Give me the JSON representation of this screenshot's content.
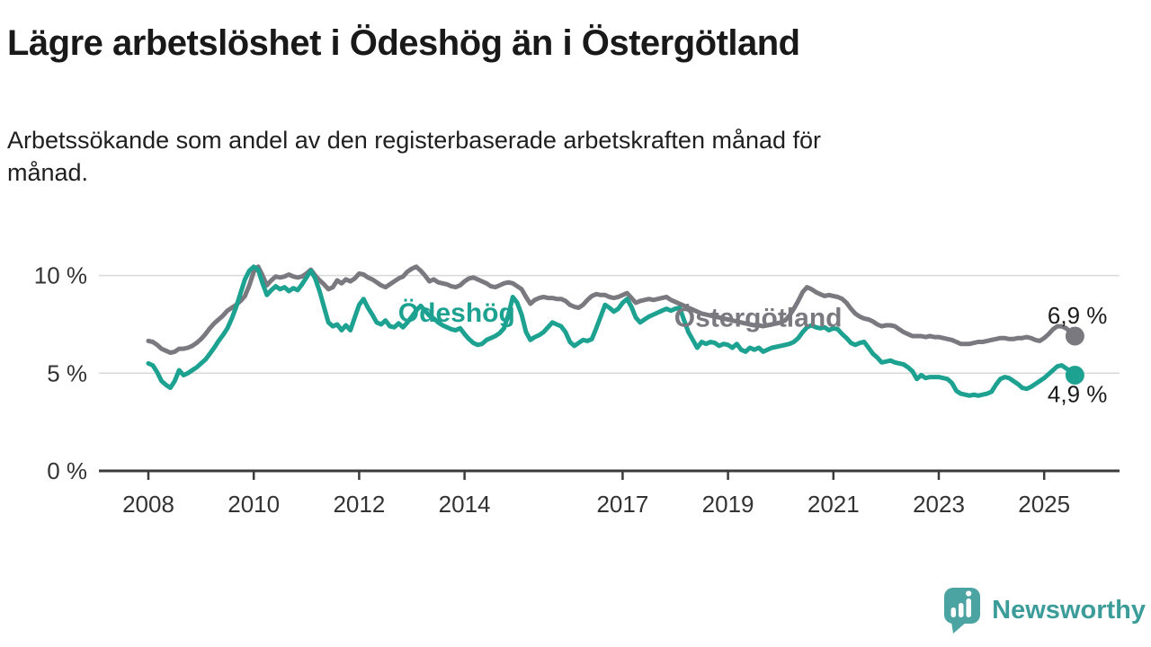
{
  "title": "Lägre arbetslöshet i Ödeshög än i Östergötland",
  "subtitle_lines": [
    "Arbetssökande som andel av den registerbaserade arbetskraften månad för",
    "månad."
  ],
  "branding": {
    "logo_text": "Newsworthy",
    "logo_color": "#4ba4a1",
    "logo_icon": "speech-bubble-bar-chart"
  },
  "colors": {
    "background": "#ffffff",
    "title_text": "#191919",
    "axis_text": "#333333",
    "axis_line": "#3b3b3b",
    "grid_line": "#d9d9d9",
    "odeshog_teal": "#1da190",
    "ostergotland_gray": "#7a797f"
  },
  "chart_data": {
    "type": "line",
    "title": "Lägre arbetslöshet i Ödeshög än i Östergötland",
    "xlabel": "",
    "ylabel": "Arbetssökande som andel av den registerbaserade arbetskraften",
    "x_unit": "year-month",
    "x_start": 2008.0,
    "x_step": 0.0833333,
    "xlim": [
      2007.06,
      2026.43
    ],
    "ylim": [
      0,
      11.7
    ],
    "grid_values": [
      5,
      10
    ],
    "x_ticks": [
      2008,
      2010,
      2012,
      2014,
      2017,
      2019,
      2021,
      2023,
      2025
    ],
    "y_ticks": [
      {
        "value": 0,
        "label": "0 %"
      },
      {
        "value": 5,
        "label": "5 %"
      },
      {
        "value": 10,
        "label": "10 %"
      }
    ],
    "legend_position": "inline-labels-on-lines",
    "series": [
      {
        "name": "Ödeshög",
        "slug": "odeshog",
        "color": "#1da190",
        "end_label": "4,9 %",
        "end_label_side": "below",
        "inline_label": {
          "x": 2012.74,
          "y": 8.1
        },
        "values": [
          5.5,
          5.4,
          5.05,
          4.6,
          4.4,
          4.25,
          4.6,
          5.15,
          4.9,
          5.0,
          5.15,
          5.3,
          5.5,
          5.7,
          6.0,
          6.3,
          6.65,
          6.95,
          7.3,
          7.8,
          8.4,
          9.1,
          9.8,
          10.25,
          10.45,
          10.3,
          9.6,
          9.0,
          9.25,
          9.45,
          9.3,
          9.4,
          9.2,
          9.35,
          9.25,
          9.55,
          9.9,
          10.25,
          9.85,
          9.2,
          8.4,
          7.6,
          7.4,
          7.5,
          7.2,
          7.45,
          7.2,
          7.85,
          8.5,
          8.8,
          8.35,
          8.0,
          7.6,
          7.5,
          7.7,
          7.4,
          7.35,
          7.55,
          7.35,
          7.6,
          7.9,
          8.2,
          8.45,
          8.2,
          7.95,
          7.8,
          7.6,
          7.45,
          7.35,
          7.25,
          7.2,
          7.3,
          7.0,
          6.75,
          6.55,
          6.45,
          6.5,
          6.7,
          6.8,
          6.9,
          7.05,
          7.3,
          8.0,
          8.9,
          8.6,
          8.0,
          7.1,
          6.7,
          6.85,
          6.95,
          7.1,
          7.35,
          7.6,
          7.5,
          7.4,
          7.1,
          6.6,
          6.4,
          6.55,
          6.7,
          6.65,
          6.75,
          7.3,
          7.9,
          8.5,
          8.35,
          8.15,
          8.3,
          8.6,
          8.8,
          8.4,
          7.85,
          7.6,
          7.75,
          7.9,
          8.0,
          8.1,
          8.2,
          8.3,
          8.2,
          8.3,
          8.35,
          7.7,
          7.1,
          6.7,
          6.3,
          6.6,
          6.5,
          6.6,
          6.55,
          6.4,
          6.5,
          6.45,
          6.3,
          6.5,
          6.2,
          6.1,
          6.3,
          6.2,
          6.3,
          6.1,
          6.2,
          6.3,
          6.35,
          6.4,
          6.45,
          6.5,
          6.6,
          6.8,
          7.1,
          7.35,
          7.45,
          7.35,
          7.3,
          7.35,
          7.2,
          7.3,
          7.25,
          7.0,
          6.8,
          6.55,
          6.45,
          6.55,
          6.6,
          6.3,
          6.0,
          5.8,
          5.55,
          5.6,
          5.65,
          5.55,
          5.5,
          5.45,
          5.3,
          5.1,
          4.7,
          4.9,
          4.75,
          4.8,
          4.8,
          4.8,
          4.75,
          4.7,
          4.5,
          4.1,
          3.95,
          3.9,
          3.85,
          3.9,
          3.85,
          3.9,
          3.95,
          4.05,
          4.4,
          4.7,
          4.8,
          4.75,
          4.6,
          4.45,
          4.25,
          4.2,
          4.3,
          4.45,
          4.6,
          4.75,
          4.95,
          5.15,
          5.35,
          5.4,
          5.25,
          5.1,
          4.9
        ]
      },
      {
        "name": "Östergötland",
        "slug": "ostergotland",
        "color": "#7a797f",
        "end_label": "6,9 %",
        "end_label_side": "above",
        "inline_label": {
          "x": 2017.98,
          "y": 7.85
        },
        "values": [
          6.65,
          6.6,
          6.45,
          6.25,
          6.15,
          6.05,
          6.1,
          6.25,
          6.25,
          6.3,
          6.4,
          6.55,
          6.75,
          7.0,
          7.3,
          7.55,
          7.75,
          7.95,
          8.2,
          8.35,
          8.5,
          8.7,
          8.95,
          9.5,
          10.2,
          10.45,
          10.0,
          9.5,
          9.75,
          9.95,
          9.9,
          9.95,
          10.05,
          9.95,
          9.9,
          9.95,
          10.1,
          10.3,
          10.0,
          9.75,
          9.55,
          9.3,
          9.4,
          9.75,
          9.6,
          9.8,
          9.7,
          9.85,
          10.1,
          10.05,
          9.9,
          9.8,
          9.65,
          9.5,
          9.4,
          9.55,
          9.7,
          9.85,
          9.95,
          10.2,
          10.35,
          10.45,
          10.25,
          10.0,
          9.7,
          9.8,
          9.65,
          9.6,
          9.55,
          9.45,
          9.4,
          9.5,
          9.7,
          9.85,
          9.9,
          9.8,
          9.7,
          9.6,
          9.45,
          9.4,
          9.5,
          9.6,
          9.65,
          9.6,
          9.45,
          9.3,
          8.9,
          8.55,
          8.75,
          8.85,
          8.9,
          8.85,
          8.85,
          8.8,
          8.8,
          8.7,
          8.5,
          8.4,
          8.35,
          8.5,
          8.75,
          8.95,
          9.05,
          9.0,
          9.0,
          8.9,
          8.85,
          8.9,
          9.0,
          9.1,
          8.85,
          8.6,
          8.7,
          8.75,
          8.8,
          8.75,
          8.8,
          8.85,
          8.9,
          8.75,
          8.65,
          8.55,
          8.45,
          8.35,
          8.25,
          8.15,
          8.05,
          8.0,
          7.95,
          7.9,
          7.85,
          7.8,
          7.75,
          7.7,
          7.65,
          7.6,
          7.55,
          7.5,
          7.45,
          7.45,
          7.4,
          7.45,
          7.5,
          7.55,
          7.6,
          7.7,
          7.95,
          8.3,
          8.7,
          9.15,
          9.4,
          9.3,
          9.15,
          9.05,
          8.95,
          9.0,
          8.95,
          8.9,
          8.8,
          8.6,
          8.3,
          8.05,
          7.9,
          7.8,
          7.75,
          7.65,
          7.5,
          7.4,
          7.45,
          7.45,
          7.4,
          7.25,
          7.1,
          7.0,
          6.9,
          6.9,
          6.9,
          6.85,
          6.9,
          6.85,
          6.85,
          6.8,
          6.75,
          6.7,
          6.6,
          6.5,
          6.5,
          6.5,
          6.55,
          6.6,
          6.6,
          6.65,
          6.7,
          6.75,
          6.8,
          6.8,
          6.75,
          6.75,
          6.8,
          6.8,
          6.85,
          6.8,
          6.7,
          6.65,
          6.8,
          7.0,
          7.25,
          7.4,
          7.4,
          7.3,
          7.1,
          6.9
        ]
      }
    ]
  }
}
